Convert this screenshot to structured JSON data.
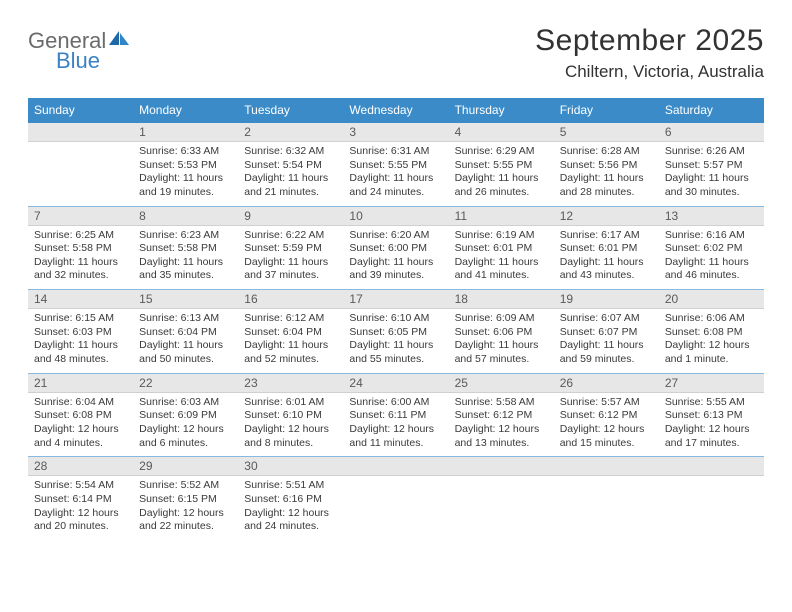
{
  "logo": {
    "word1": "General",
    "word2": "Blue"
  },
  "title": "September 2025",
  "location": "Chiltern, Victoria, Australia",
  "colors": {
    "header_bg": "#3b8bc9",
    "header_text": "#ffffff",
    "daynum_bg": "#e7e7e7",
    "daynum_text": "#5a5a5a",
    "body_text": "#3a3a3a",
    "rule": "#3b8bc9",
    "logo_gray": "#6b6b6b",
    "logo_blue": "#3b82c4"
  },
  "dow": [
    "Sunday",
    "Monday",
    "Tuesday",
    "Wednesday",
    "Thursday",
    "Friday",
    "Saturday"
  ],
  "weeks": [
    [
      {
        "n": "",
        "lines": []
      },
      {
        "n": "1",
        "lines": [
          "Sunrise: 6:33 AM",
          "Sunset: 5:53 PM",
          "Daylight: 11 hours and 19 minutes."
        ]
      },
      {
        "n": "2",
        "lines": [
          "Sunrise: 6:32 AM",
          "Sunset: 5:54 PM",
          "Daylight: 11 hours and 21 minutes."
        ]
      },
      {
        "n": "3",
        "lines": [
          "Sunrise: 6:31 AM",
          "Sunset: 5:55 PM",
          "Daylight: 11 hours and 24 minutes."
        ]
      },
      {
        "n": "4",
        "lines": [
          "Sunrise: 6:29 AM",
          "Sunset: 5:55 PM",
          "Daylight: 11 hours and 26 minutes."
        ]
      },
      {
        "n": "5",
        "lines": [
          "Sunrise: 6:28 AM",
          "Sunset: 5:56 PM",
          "Daylight: 11 hours and 28 minutes."
        ]
      },
      {
        "n": "6",
        "lines": [
          "Sunrise: 6:26 AM",
          "Sunset: 5:57 PM",
          "Daylight: 11 hours and 30 minutes."
        ]
      }
    ],
    [
      {
        "n": "7",
        "lines": [
          "Sunrise: 6:25 AM",
          "Sunset: 5:58 PM",
          "Daylight: 11 hours and 32 minutes."
        ]
      },
      {
        "n": "8",
        "lines": [
          "Sunrise: 6:23 AM",
          "Sunset: 5:58 PM",
          "Daylight: 11 hours and 35 minutes."
        ]
      },
      {
        "n": "9",
        "lines": [
          "Sunrise: 6:22 AM",
          "Sunset: 5:59 PM",
          "Daylight: 11 hours and 37 minutes."
        ]
      },
      {
        "n": "10",
        "lines": [
          "Sunrise: 6:20 AM",
          "Sunset: 6:00 PM",
          "Daylight: 11 hours and 39 minutes."
        ]
      },
      {
        "n": "11",
        "lines": [
          "Sunrise: 6:19 AM",
          "Sunset: 6:01 PM",
          "Daylight: 11 hours and 41 minutes."
        ]
      },
      {
        "n": "12",
        "lines": [
          "Sunrise: 6:17 AM",
          "Sunset: 6:01 PM",
          "Daylight: 11 hours and 43 minutes."
        ]
      },
      {
        "n": "13",
        "lines": [
          "Sunrise: 6:16 AM",
          "Sunset: 6:02 PM",
          "Daylight: 11 hours and 46 minutes."
        ]
      }
    ],
    [
      {
        "n": "14",
        "lines": [
          "Sunrise: 6:15 AM",
          "Sunset: 6:03 PM",
          "Daylight: 11 hours and 48 minutes."
        ]
      },
      {
        "n": "15",
        "lines": [
          "Sunrise: 6:13 AM",
          "Sunset: 6:04 PM",
          "Daylight: 11 hours and 50 minutes."
        ]
      },
      {
        "n": "16",
        "lines": [
          "Sunrise: 6:12 AM",
          "Sunset: 6:04 PM",
          "Daylight: 11 hours and 52 minutes."
        ]
      },
      {
        "n": "17",
        "lines": [
          "Sunrise: 6:10 AM",
          "Sunset: 6:05 PM",
          "Daylight: 11 hours and 55 minutes."
        ]
      },
      {
        "n": "18",
        "lines": [
          "Sunrise: 6:09 AM",
          "Sunset: 6:06 PM",
          "Daylight: 11 hours and 57 minutes."
        ]
      },
      {
        "n": "19",
        "lines": [
          "Sunrise: 6:07 AM",
          "Sunset: 6:07 PM",
          "Daylight: 11 hours and 59 minutes."
        ]
      },
      {
        "n": "20",
        "lines": [
          "Sunrise: 6:06 AM",
          "Sunset: 6:08 PM",
          "Daylight: 12 hours and 1 minute."
        ]
      }
    ],
    [
      {
        "n": "21",
        "lines": [
          "Sunrise: 6:04 AM",
          "Sunset: 6:08 PM",
          "Daylight: 12 hours and 4 minutes."
        ]
      },
      {
        "n": "22",
        "lines": [
          "Sunrise: 6:03 AM",
          "Sunset: 6:09 PM",
          "Daylight: 12 hours and 6 minutes."
        ]
      },
      {
        "n": "23",
        "lines": [
          "Sunrise: 6:01 AM",
          "Sunset: 6:10 PM",
          "Daylight: 12 hours and 8 minutes."
        ]
      },
      {
        "n": "24",
        "lines": [
          "Sunrise: 6:00 AM",
          "Sunset: 6:11 PM",
          "Daylight: 12 hours and 11 minutes."
        ]
      },
      {
        "n": "25",
        "lines": [
          "Sunrise: 5:58 AM",
          "Sunset: 6:12 PM",
          "Daylight: 12 hours and 13 minutes."
        ]
      },
      {
        "n": "26",
        "lines": [
          "Sunrise: 5:57 AM",
          "Sunset: 6:12 PM",
          "Daylight: 12 hours and 15 minutes."
        ]
      },
      {
        "n": "27",
        "lines": [
          "Sunrise: 5:55 AM",
          "Sunset: 6:13 PM",
          "Daylight: 12 hours and 17 minutes."
        ]
      }
    ],
    [
      {
        "n": "28",
        "lines": [
          "Sunrise: 5:54 AM",
          "Sunset: 6:14 PM",
          "Daylight: 12 hours and 20 minutes."
        ]
      },
      {
        "n": "29",
        "lines": [
          "Sunrise: 5:52 AM",
          "Sunset: 6:15 PM",
          "Daylight: 12 hours and 22 minutes."
        ]
      },
      {
        "n": "30",
        "lines": [
          "Sunrise: 5:51 AM",
          "Sunset: 6:16 PM",
          "Daylight: 12 hours and 24 minutes."
        ]
      },
      {
        "n": "",
        "lines": []
      },
      {
        "n": "",
        "lines": []
      },
      {
        "n": "",
        "lines": []
      },
      {
        "n": "",
        "lines": []
      }
    ]
  ]
}
